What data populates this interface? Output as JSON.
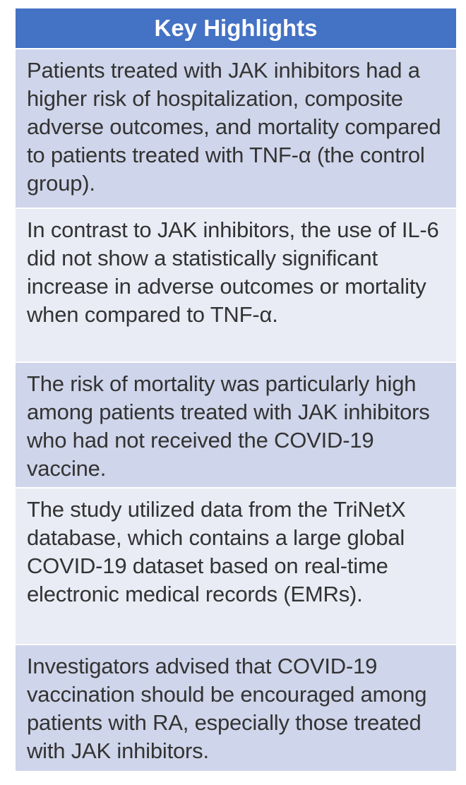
{
  "header": {
    "title": "Key Highlights"
  },
  "rows": [
    {
      "text": "Patients treated with JAK inhibitors had a higher risk of hospitalization, composite adverse outcomes, and mortality compared to patients treated with TNF-α (the control group)."
    },
    {
      "text": "In contrast to JAK inhibitors, the use of IL-6 did not show a statistically significant increase in adverse outcomes or mortality when compared to TNF-α."
    },
    {
      "text": "The risk of mortality was particularly high among patients treated with JAK inhibitors who had not received the COVID-19 vaccine."
    },
    {
      "text": "The study utilized data from the TriNetX database, which contains a large global COVID-19 dataset based on real-time electronic medical records (EMRs)."
    },
    {
      "text": "Investigators advised that COVID-19 vaccination should be encouraged among patients with RA, especially those treated with JAK inhibitors."
    }
  ],
  "colors": {
    "header_bg": "#4472c4",
    "row_dark": "#cfd5ea",
    "row_light": "#e9ebf5",
    "text": "#333333"
  }
}
